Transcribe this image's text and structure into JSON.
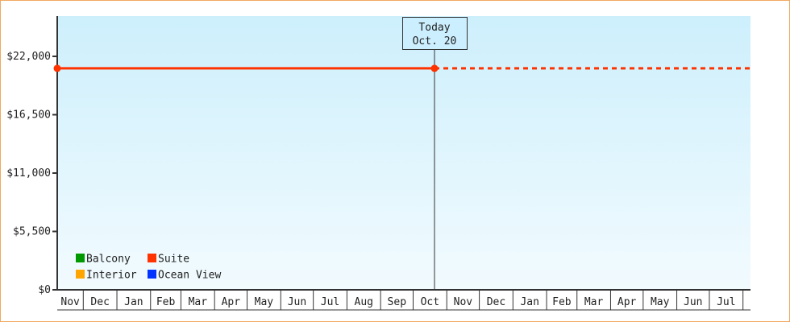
{
  "chart_data": {
    "type": "line",
    "title": "",
    "xlabel": "",
    "ylabel": "",
    "ylim": [
      0,
      27500
    ],
    "y_ticks": [
      "$0",
      "$5,500",
      "$11,000",
      "$16,500",
      "$22,000"
    ],
    "y_tick_values": [
      0,
      5500,
      11000,
      16500,
      22000
    ],
    "x_tick_labels": [
      "Nov",
      "Dec",
      "Jan",
      "Feb",
      "Mar",
      "Apr",
      "May",
      "Jun",
      "Jul",
      "Aug",
      "Sep",
      "Oct",
      "Nov",
      "Dec",
      "Jan",
      "Feb",
      "Mar",
      "Apr",
      "May",
      "Jun",
      "Jul"
    ],
    "grid": false,
    "legend_placement": "bottom-left",
    "today_marker": {
      "line1": "Today",
      "line2": "Oct. 20"
    },
    "series": [
      {
        "name": "Balcony",
        "color": "#009900",
        "values": []
      },
      {
        "name": "Suite",
        "color": "#ff3300",
        "start": "Nov",
        "end": "Oct. 20",
        "value": 20870,
        "projected_after_today": true
      },
      {
        "name": "Interior",
        "color": "#ffa500",
        "values": []
      },
      {
        "name": "Ocean View",
        "color": "#0033ff",
        "values": []
      }
    ],
    "legend_order": [
      0,
      1,
      2,
      3
    ]
  },
  "colors": {
    "plot_top": "#cdeffc",
    "plot_bottom": "#f2fbfe",
    "border": "#f0a860",
    "axis": "#333333"
  }
}
